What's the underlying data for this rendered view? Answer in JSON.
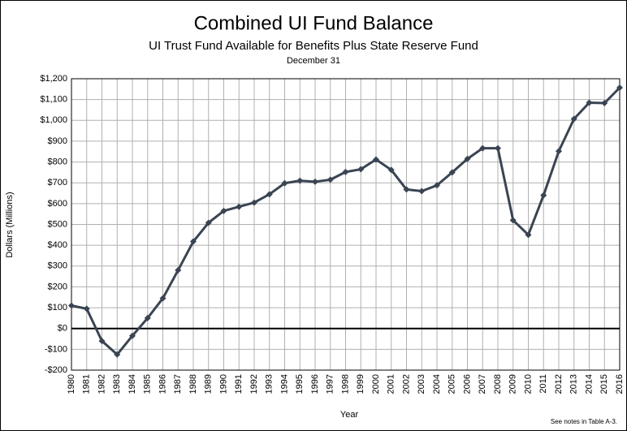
{
  "chart_data": {
    "type": "line",
    "title": "Combined UI Fund Balance",
    "subtitle": "UI Trust Fund Available for Benefits Plus State Reserve Fund",
    "subtitle2": "December 31",
    "y_label": "Dollars (Millions)",
    "x_label": "Year",
    "note": "See notes  in Table A-3.",
    "color": "#3a4452",
    "grid": true,
    "categories": [
      "1980",
      "1981",
      "1982",
      "1983",
      "1984",
      "1985",
      "1986",
      "1987",
      "1988",
      "1989",
      "1990",
      "1991",
      "1992",
      "1993",
      "1994",
      "1995",
      "1996",
      "1997",
      "1998",
      "1999",
      "2000",
      "2001",
      "2002",
      "2003",
      "2004",
      "2005",
      "2006",
      "2007",
      "2008",
      "2009",
      "2010",
      "2011",
      "2012",
      "2013",
      "2014",
      "2015",
      "2016"
    ],
    "values": [
      110,
      95,
      -60,
      -125,
      -35,
      50,
      145,
      280,
      418,
      508,
      565,
      585,
      605,
      645,
      698,
      710,
      705,
      715,
      752,
      765,
      812,
      762,
      668,
      660,
      688,
      750,
      815,
      866,
      866,
      520,
      450,
      640,
      852,
      1007,
      1085,
      1083,
      1157
    ],
    "ylim": [
      -200,
      1200
    ],
    "yticks": [
      {
        "value": -200,
        "label": "-$200"
      },
      {
        "value": -100,
        "label": "-$100"
      },
      {
        "value": 0,
        "label": "$0"
      },
      {
        "value": 100,
        "label": "$100"
      },
      {
        "value": 200,
        "label": "$200"
      },
      {
        "value": 300,
        "label": "$300"
      },
      {
        "value": 400,
        "label": "$400"
      },
      {
        "value": 500,
        "label": "$500"
      },
      {
        "value": 600,
        "label": "$600"
      },
      {
        "value": 700,
        "label": "$700"
      },
      {
        "value": 800,
        "label": "$800"
      },
      {
        "value": 900,
        "label": "$900"
      },
      {
        "value": 1000,
        "label": "$1,000"
      },
      {
        "value": 1100,
        "label": "$1,100"
      },
      {
        "value": 1200,
        "label": "$1,200"
      }
    ]
  }
}
